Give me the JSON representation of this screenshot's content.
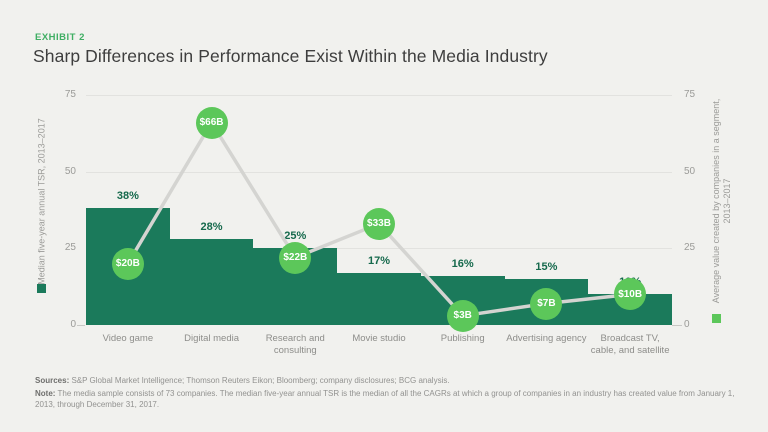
{
  "header": {
    "exhibit_label": "EXHIBIT 2",
    "title": "Sharp Differences in Performance Exist Within the Media Industry"
  },
  "colors": {
    "background": "#f1f1ee",
    "bar": "#1b7a5b",
    "bar_label": "#15694c",
    "marker": "#5cc75a",
    "marker_text": "#ffffff",
    "connector": "#d4d4d1",
    "accent_green": "#3fae63",
    "title_text": "#3e3e3e",
    "axis_text": "#9b9b98",
    "footnote_text": "#929290"
  },
  "chart_data": {
    "type": "bar+line",
    "categories": [
      "Video game",
      "Digital media",
      "Research and consulting",
      "Movie studio",
      "Publishing",
      "Advertising agency",
      "Broadcast TV, cable, and satellite"
    ],
    "series": [
      {
        "name": "Median five-year annual TSR, 2013–2017",
        "type": "bar",
        "axis": "left",
        "unit": "%",
        "values": [
          38,
          28,
          25,
          17,
          16,
          15,
          10
        ],
        "labels": [
          "38%",
          "28%",
          "25%",
          "17%",
          "16%",
          "15%",
          "10%"
        ],
        "color": "#1b7a5b"
      },
      {
        "name": "Average value created by companies in a segment, 2013–2017",
        "type": "line",
        "axis": "right",
        "unit": "$B",
        "values": [
          20,
          66,
          22,
          33,
          3,
          7,
          10
        ],
        "labels": [
          "$20B",
          "$66B",
          "$22B",
          "$33B",
          "$3B",
          "$7B",
          "$10B"
        ],
        "color": "#5cc75a",
        "line_color": "#d4d4d1"
      }
    ],
    "left_axis": {
      "label": "Median five-year annual TSR, 2013–2017",
      "ticks": [
        0,
        25,
        50,
        75
      ]
    },
    "right_axis": {
      "label": "Average value created by companies in a segment, 2013–2017",
      "ticks": [
        0,
        25,
        50,
        75
      ]
    },
    "ylim": [
      0,
      75
    ],
    "grid": true,
    "legend_position": "axis-titles"
  },
  "footnotes": {
    "sources_label": "Sources:",
    "sources_text": "S&P Global Market Intelligence; Thomson Reuters Eikon; Bloomberg; company disclosures; BCG analysis.",
    "note_label": "Note:",
    "note_text": "The media sample consists of 73 companies. The median five-year annual TSR is the median of all the CAGRs at which a group of companies in an industry has created value from January 1, 2013, through December 31, 2017."
  }
}
